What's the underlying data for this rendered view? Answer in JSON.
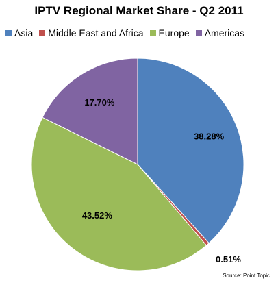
{
  "chart_data": {
    "type": "pie",
    "title": "IPTV Regional Market Share - Q2 2011",
    "legend_position": "top",
    "source": "Source: Point Topic",
    "slices": [
      {
        "name": "Asia",
        "value": 38.28,
        "label": "38.28%",
        "color": "#4F81BD"
      },
      {
        "name": "Middle East and Africa",
        "value": 0.51,
        "label": "0.51%",
        "color": "#C0504D"
      },
      {
        "name": "Europe",
        "value": 43.52,
        "label": "43.52%",
        "color": "#9BBB59"
      },
      {
        "name": "Americas",
        "value": 17.7,
        "label": "17.70%",
        "color": "#8064A2"
      }
    ]
  }
}
